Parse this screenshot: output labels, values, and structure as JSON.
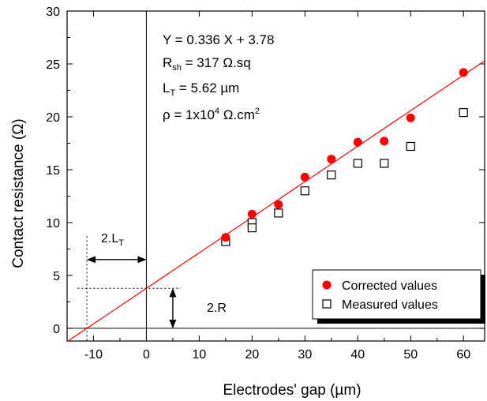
{
  "chart_data": {
    "type": "scatter",
    "xlabel": "Electrodes' gap (µm)",
    "ylabel": "Contact resistance (Ω)",
    "xlim": [
      -15,
      64
    ],
    "ylim": [
      -1.2,
      30
    ],
    "xticks": [
      -10,
      0,
      10,
      20,
      30,
      40,
      50,
      60
    ],
    "yticks": [
      0,
      5,
      10,
      15,
      20,
      25,
      30
    ],
    "grid": false,
    "legend_position": "bottom-right",
    "series": [
      {
        "name": "Corrected values",
        "marker": "filled-circle",
        "color": "#ff0000",
        "x": [
          15,
          20,
          25,
          30,
          35,
          40,
          45,
          50,
          60
        ],
        "y": [
          8.6,
          10.8,
          11.7,
          14.3,
          16.0,
          17.6,
          17.7,
          19.9,
          24.2
        ]
      },
      {
        "name": "Measured values",
        "marker": "open-square",
        "color": "#000000",
        "x": [
          15,
          20,
          20,
          25,
          30,
          35,
          40,
          45,
          50,
          60
        ],
        "y": [
          8.2,
          10.0,
          9.5,
          10.9,
          13.0,
          14.5,
          15.6,
          15.6,
          17.2,
          20.4
        ]
      }
    ],
    "fit_line": {
      "slope": 0.336,
      "intercept": 3.78,
      "color": "#ff0000"
    },
    "annotations": {
      "equation": "Y = 0.336 X + 3.78",
      "rsh_prefix": "R",
      "rsh_sub": "sh",
      "rsh_rest": " = 317 Ω.sq",
      "lt_prefix": "L",
      "lt_sub": "T",
      "lt_rest": " = 5.62 µm",
      "rho_prefix": "ρ = 1x10",
      "rho_sup1": "4",
      "rho_mid": " Ω.cm",
      "rho_sup2": "2",
      "two_lt_prefix": "2.L",
      "two_lt_sub": "T",
      "two_r": "2.R"
    }
  }
}
